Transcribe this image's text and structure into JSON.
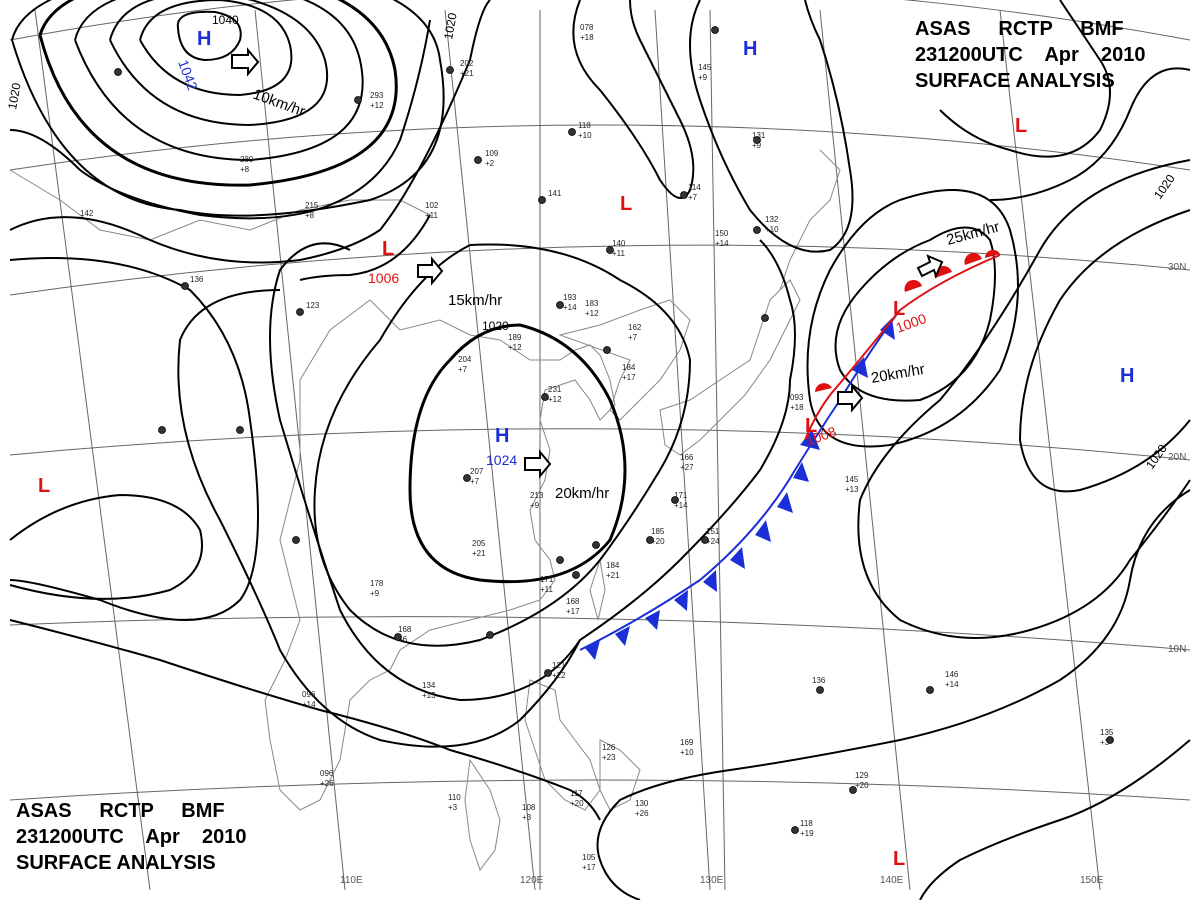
{
  "header": {
    "line1": [
      "ASAS",
      "RCTP",
      "BMF"
    ],
    "line2": [
      "231200UTC",
      "Apr",
      "2010"
    ],
    "line3": "SURFACE ANALYSIS"
  },
  "longitude_labels": [
    "110E",
    "120E",
    "130E",
    "140E",
    "150E"
  ],
  "latitude_labels": [
    "30N",
    "20N",
    "10N"
  ],
  "highs": [
    {
      "symbol": "H",
      "value": "1042",
      "color": "#1a2fd6"
    },
    {
      "symbol": "H",
      "value": "1024",
      "color": "#1a2fd6"
    },
    {
      "symbol": "H",
      "value": "",
      "color": "#1a2fd6"
    },
    {
      "symbol": "H",
      "value": "",
      "color": "#1a2fd6"
    }
  ],
  "lows": [
    {
      "symbol": "L",
      "value": "1006",
      "color": "#e01010"
    },
    {
      "symbol": "L",
      "value": "1000",
      "color": "#e01010"
    },
    {
      "symbol": "L",
      "value": "1008",
      "color": "#e01010"
    },
    {
      "symbol": "L",
      "value": "",
      "color": "#e01010"
    },
    {
      "symbol": "L",
      "value": "",
      "color": "#e01010"
    },
    {
      "symbol": "L",
      "value": "",
      "color": "#e01010"
    },
    {
      "symbol": "L",
      "value": "",
      "color": "#e01010"
    }
  ],
  "isobar_labels": [
    "1040",
    "1020",
    "1020",
    "1020",
    "1020",
    "1020"
  ],
  "motion_labels": [
    "10km/hr",
    "15km/hr",
    "20km/hr",
    "25km/hr",
    "20km/hr"
  ],
  "station_values": [
    "293",
    "+12",
    "202",
    "+21",
    "109",
    "+2",
    "141",
    "118",
    "+10",
    "114",
    "+7",
    "140",
    "+11",
    "150",
    "+14",
    "132",
    "+10",
    "193",
    "+14",
    "183",
    "+12",
    "162",
    "+7",
    "189",
    "+12",
    "204",
    "+7",
    "184",
    "+17",
    "231",
    "+12",
    "207",
    "+7",
    "213",
    "+9",
    "205",
    "+21",
    "178",
    "+9",
    "168",
    "+6",
    "134",
    "+13",
    "096",
    "+14",
    "110",
    "+3",
    "108",
    "+3",
    "105",
    "+17",
    "121",
    "+22",
    "126",
    "+23",
    "169",
    "+10",
    "130",
    "+26",
    "117",
    "+20",
    "171",
    "+14",
    "185",
    "+20",
    "151",
    "+24",
    "184",
    "+21",
    "171",
    "+11",
    "168",
    "+17",
    "123",
    "136",
    "142",
    "078",
    "+18",
    "145",
    "+9",
    "131",
    "+9",
    "093",
    "+18",
    "166",
    "+27",
    "145",
    "+13",
    "146",
    "+14",
    "135",
    "+3",
    "129",
    "+20",
    "118",
    "+19",
    "136",
    "096",
    "+26",
    "102",
    "+11",
    "215",
    "+8",
    "280",
    "+8"
  ],
  "colors": {
    "isobar": "#000000",
    "cold_front": "#1a2fd6",
    "warm_front": "#e01010",
    "high": "#1a2fd6",
    "low": "#e01010",
    "grid": "#555555"
  }
}
